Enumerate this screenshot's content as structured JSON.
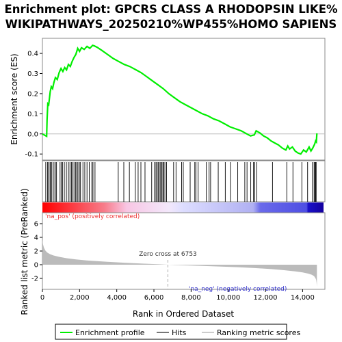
{
  "title_line1": "Enrichment plot: GPCRS CLASS A RHODOPSIN LIKE%",
  "title_line2": "WIKIPATHWAYS_20250210%WP455%HOMO SAPIENS",
  "colors": {
    "curve": "#00ee00",
    "hit": "#000000",
    "metric_fill": "#bbbbbb",
    "zero_line": "#bbbbbb",
    "pos_label": "#ee3333",
    "neg_label": "#3333cc",
    "zero_cross_line": "#aaaaaa"
  },
  "chart_data": {
    "type": "line",
    "xlabel": "Rank in Ordered Dataset",
    "xlim": [
      0,
      15200
    ],
    "x_ticks": [
      0,
      2000,
      4000,
      6000,
      8000,
      10000,
      12000,
      14000
    ],
    "x_tick_labels": [
      "0",
      "2,000",
      "4,000",
      "6,000",
      "8,000",
      "10,000",
      "12,000",
      "14,000"
    ],
    "es_panel": {
      "ylabel": "Enrichment score (ES)",
      "ylim": [
        -0.13,
        0.475
      ],
      "y_ticks": [
        -0.1,
        0.0,
        0.1,
        0.2,
        0.3,
        0.4
      ],
      "y_tick_labels": [
        "-0.1",
        "0.0",
        "0.1",
        "0.2",
        "0.3",
        "0.4"
      ],
      "series": [
        {
          "name": "Enrichment profile",
          "x": [
            0,
            230,
            250,
            290,
            340,
            420,
            480,
            550,
            620,
            700,
            800,
            900,
            1000,
            1100,
            1200,
            1300,
            1400,
            1500,
            1600,
            1700,
            1800,
            1900,
            2000,
            2100,
            2250,
            2400,
            2550,
            2700,
            2800,
            2950,
            3200,
            3500,
            3800,
            4100,
            4400,
            4700,
            5000,
            5300,
            5600,
            5900,
            6200,
            6500,
            6800,
            7100,
            7400,
            7700,
            8000,
            8300,
            8600,
            8900,
            9200,
            9500,
            9800,
            10100,
            10400,
            10700,
            11000,
            11200,
            11400,
            11500,
            11700,
            11900,
            12100,
            12300,
            12500,
            12700,
            12900,
            13100,
            13200,
            13300,
            13450,
            13600,
            13750,
            13900,
            14050,
            14200,
            14350,
            14450,
            14550,
            14650,
            14700,
            14740,
            14770
          ],
          "y": [
            0.0,
            -0.012,
            0.07,
            0.15,
            0.145,
            0.21,
            0.235,
            0.225,
            0.255,
            0.28,
            0.27,
            0.305,
            0.325,
            0.31,
            0.33,
            0.318,
            0.345,
            0.335,
            0.36,
            0.38,
            0.395,
            0.425,
            0.41,
            0.428,
            0.42,
            0.435,
            0.425,
            0.44,
            0.437,
            0.43,
            0.415,
            0.395,
            0.375,
            0.36,
            0.345,
            0.335,
            0.32,
            0.305,
            0.285,
            0.265,
            0.245,
            0.225,
            0.2,
            0.18,
            0.16,
            0.145,
            0.13,
            0.115,
            0.1,
            0.09,
            0.075,
            0.065,
            0.05,
            0.035,
            0.025,
            0.015,
            0.0,
            -0.01,
            -0.005,
            0.015,
            0.005,
            -0.01,
            -0.02,
            -0.035,
            -0.045,
            -0.055,
            -0.07,
            -0.08,
            -0.06,
            -0.075,
            -0.065,
            -0.085,
            -0.095,
            -0.1,
            -0.08,
            -0.09,
            -0.065,
            -0.085,
            -0.07,
            -0.05,
            -0.035,
            -0.04,
            0.003
          ]
        }
      ]
    },
    "hits": {
      "name": "Hits",
      "x": [
        180,
        280,
        330,
        410,
        460,
        510,
        620,
        700,
        760,
        950,
        1020,
        1080,
        1180,
        1290,
        1400,
        1480,
        1560,
        1640,
        1700,
        1790,
        1850,
        1910,
        1990,
        2050,
        2180,
        2280,
        2400,
        2520,
        2660,
        2720,
        2830,
        4080,
        4380,
        4680,
        5000,
        5150,
        5300,
        5520,
        5880,
        6030,
        6110,
        6170,
        6230,
        6290,
        6360,
        6420,
        6480,
        6530,
        6590,
        6680,
        7060,
        7190,
        7490,
        7580,
        7950,
        8200,
        8260,
        8380,
        8820,
        8970,
        9050,
        9460,
        9840,
        10120,
        10510,
        10890,
        11010,
        11210,
        11360,
        11430,
        11540,
        12380,
        13150,
        13480,
        13960,
        14270,
        14530,
        14620,
        14660,
        14700,
        14730
      ]
    },
    "metric_panel": {
      "name": "Ranking metric scores",
      "ylabel": "Ranked list metric (PreRanked)",
      "ylim": [
        -3.6,
        7.6
      ],
      "y_ticks": [
        -2,
        0,
        2,
        4,
        6
      ],
      "y_tick_labels": [
        "-2",
        "0",
        "2",
        "4",
        "6"
      ],
      "x": [
        0,
        30,
        80,
        150,
        250,
        400,
        600,
        900,
        1300,
        1800,
        2500,
        3500,
        4500,
        5500,
        6300,
        6753,
        7500,
        8500,
        9500,
        10500,
        11500,
        12300,
        13000,
        13600,
        14000,
        14300,
        14500,
        14620,
        14690,
        14730,
        14750,
        14770
      ],
      "values": [
        3.8,
        3.0,
        2.5,
        2.1,
        1.8,
        1.55,
        1.35,
        1.15,
        0.95,
        0.78,
        0.6,
        0.42,
        0.28,
        0.15,
        0.06,
        0.0,
        -0.08,
        -0.16,
        -0.26,
        -0.36,
        -0.5,
        -0.64,
        -0.8,
        -0.98,
        -1.12,
        -1.3,
        -1.48,
        -1.68,
        -1.95,
        -2.2,
        -2.6,
        -3.2
      ]
    },
    "pos_label": "'na_pos' (positively correlated)",
    "neg_label": "'na_neg' (negatively correlated)",
    "zero_cross_label": "Zero cross at 6753",
    "zero_cross": 6753,
    "legend": {
      "position": "bottom",
      "entries": [
        "Enrichment profile",
        "Hits",
        "Ranking metric scores"
      ]
    }
  }
}
